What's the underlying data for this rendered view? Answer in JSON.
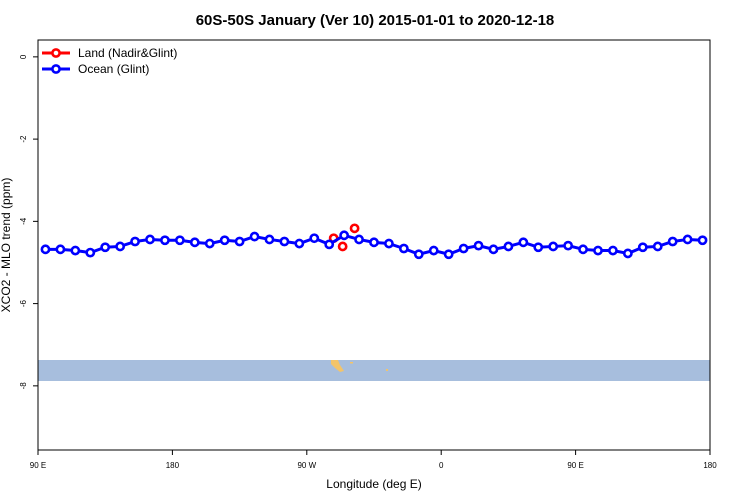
{
  "chart_data": {
    "type": "line",
    "title": "60S-50S January (Ver 10)   2015-01-01 to 2020-12-18",
    "x_label": "Longitude (deg E)",
    "y_label": "XCO2 - MLO trend (ppm)",
    "xlim": [
      90,
      540
    ],
    "xticks": [
      {
        "value": 90,
        "label": "90 E"
      },
      180,
      {
        "value": 270,
        "label": "90 W"
      },
      {
        "value": 360,
        "label": "0"
      },
      {
        "value": 450,
        "label": "90 E"
      },
      {
        "value": 540,
        "label": "180"
      }
    ],
    "ylim": [
      -9.56,
      0.41
    ],
    "yticks": [
      0,
      -2,
      -4,
      -6,
      -8
    ],
    "legend": "top-left",
    "series": [
      {
        "name": "Land (Nadir&Glint)",
        "color": "#ff0000",
        "line": false,
        "x": [
          288,
          294,
          302
        ],
        "values": [
          -4.41,
          -4.61,
          -4.17
        ]
      },
      {
        "name": "Ocean (Glint)",
        "color": "#0000ff",
        "line": true,
        "x": [
          95,
          105,
          115,
          125,
          135,
          145,
          155,
          165,
          175,
          185,
          195,
          205,
          215,
          225,
          235,
          245,
          255,
          265,
          275,
          285,
          295,
          305,
          315,
          325,
          335,
          345,
          355,
          365,
          375,
          385,
          395,
          405,
          415,
          425,
          435,
          445,
          455,
          465,
          475,
          485,
          495,
          505,
          515,
          525,
          535
        ],
        "values": [
          -4.68,
          -4.68,
          -4.71,
          -4.76,
          -4.63,
          -4.61,
          -4.49,
          -4.44,
          -4.46,
          -4.46,
          -4.51,
          -4.54,
          -4.46,
          -4.49,
          -4.37,
          -4.44,
          -4.49,
          -4.54,
          -4.41,
          -4.56,
          -4.34,
          -4.44,
          -4.51,
          -4.54,
          -4.66,
          -4.8,
          -4.71,
          -4.8,
          -4.66,
          -4.59,
          -4.68,
          -4.61,
          -4.51,
          -4.63,
          -4.61,
          -4.59,
          -4.68,
          -4.71,
          -4.71,
          -4.78,
          -4.63,
          -4.61,
          -4.49,
          -4.44,
          -4.46
        ]
      }
    ]
  }
}
